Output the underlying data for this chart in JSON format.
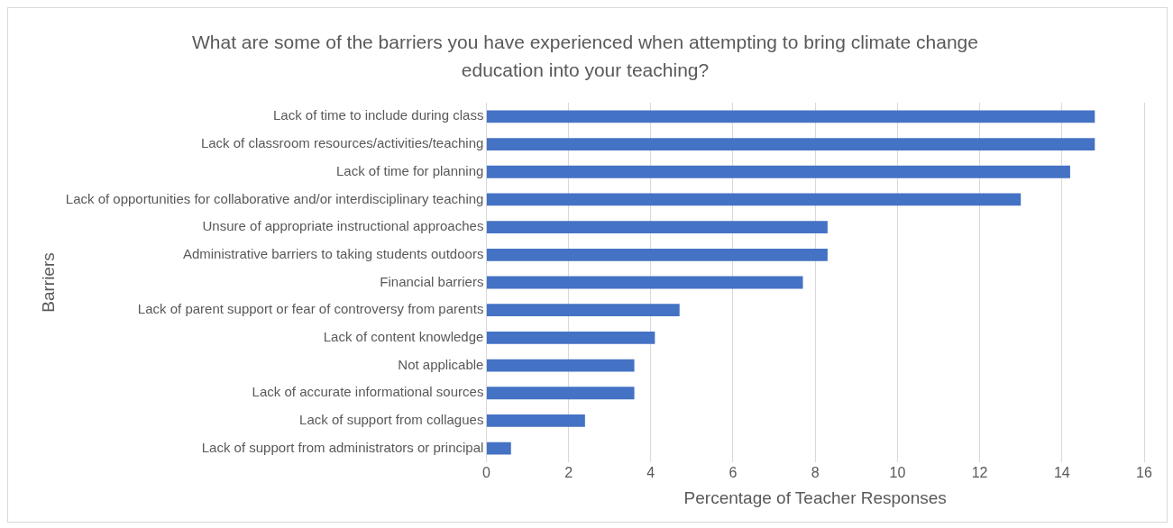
{
  "chart_data": {
    "type": "bar",
    "orientation": "horizontal",
    "title": "What are some of the barriers you have experienced when attempting to bring climate change education into your teaching?",
    "xlabel": "Percentage of Teacher Responses",
    "ylabel": "Barriers",
    "categories": [
      "Lack of time to include during class",
      "Lack of classroom resources/activities/teaching",
      "Lack of time for planning",
      "Lack of opportunities for collaborative and/or interdisciplinary teaching",
      "Unsure of appropriate instructional approaches",
      "Administrative barriers to taking students outdoors",
      "Financial barriers",
      "Lack of parent support or fear of controversy from parents",
      "Lack of content knowledge",
      "Not applicable",
      "Lack of accurate informational sources",
      "Lack of support from collagues",
      "Lack of support from administrators or principal"
    ],
    "values": [
      14.8,
      14.8,
      14.2,
      13.0,
      8.3,
      8.3,
      7.7,
      4.7,
      4.1,
      3.6,
      3.6,
      2.4,
      0.6
    ],
    "color": "#4472c4",
    "xlim": [
      0,
      16
    ],
    "xticks": [
      0,
      2,
      4,
      6,
      8,
      10,
      12,
      14,
      16
    ],
    "grid": "x",
    "legend": false
  }
}
